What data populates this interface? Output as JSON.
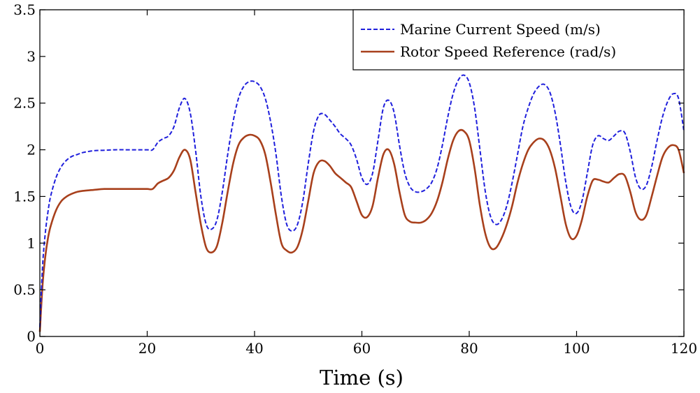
{
  "chart_data": {
    "type": "line",
    "title": "",
    "xlabel": "Time (s)",
    "ylabel": "",
    "xlim": [
      0,
      120
    ],
    "ylim": [
      0,
      3.5
    ],
    "xticks": [
      "0",
      "20",
      "40",
      "60",
      "80",
      "100",
      "120"
    ],
    "yticks": [
      "0",
      "0.5",
      "1",
      "1.5",
      "2",
      "2.5",
      "3",
      "3.5"
    ],
    "grid": false,
    "legend_position": "top-right",
    "series": [
      {
        "name": "Marine Current Speed (m/s)",
        "color": "#1f1fdc",
        "dash": "dashed",
        "x": [
          0,
          0.5,
          1,
          1.5,
          2,
          3,
          4,
          5,
          6,
          7,
          8,
          10,
          12,
          14,
          16,
          18,
          20,
          21,
          22,
          23,
          24,
          25,
          26,
          27,
          28,
          29,
          30,
          31,
          32,
          33,
          34,
          35,
          36,
          37,
          38,
          39,
          40,
          41,
          42,
          43,
          44,
          45,
          46,
          47,
          48,
          49,
          50,
          51,
          52,
          53,
          54,
          55,
          56,
          57,
          58,
          59,
          60,
          61,
          62,
          63,
          64,
          65,
          66,
          67,
          68,
          69,
          70,
          71,
          72,
          73,
          74,
          75,
          76,
          77,
          78,
          79,
          80,
          81,
          82,
          83,
          84,
          85,
          86,
          87,
          88,
          89,
          90,
          91,
          92,
          93,
          94,
          95,
          96,
          97,
          98,
          99,
          100,
          101,
          102,
          103,
          104,
          105,
          106,
          107,
          108,
          109,
          110,
          111,
          112,
          113,
          114,
          115,
          116,
          117,
          118,
          119,
          120
        ],
        "y": [
          0.1,
          0.75,
          1.1,
          1.33,
          1.5,
          1.7,
          1.82,
          1.89,
          1.93,
          1.95,
          1.97,
          1.99,
          1.995,
          2.0,
          2.0,
          2.0,
          2.0,
          2.0,
          2.08,
          2.12,
          2.15,
          2.25,
          2.45,
          2.55,
          2.4,
          2.0,
          1.5,
          1.2,
          1.15,
          1.25,
          1.55,
          1.95,
          2.3,
          2.55,
          2.68,
          2.73,
          2.73,
          2.68,
          2.55,
          2.3,
          1.95,
          1.5,
          1.2,
          1.13,
          1.2,
          1.45,
          1.85,
          2.2,
          2.37,
          2.38,
          2.32,
          2.25,
          2.17,
          2.12,
          2.05,
          1.9,
          1.7,
          1.63,
          1.75,
          2.1,
          2.45,
          2.53,
          2.4,
          2.05,
          1.75,
          1.6,
          1.55,
          1.55,
          1.58,
          1.65,
          1.8,
          2.05,
          2.35,
          2.6,
          2.75,
          2.8,
          2.72,
          2.45,
          2.0,
          1.55,
          1.28,
          1.2,
          1.25,
          1.4,
          1.65,
          1.95,
          2.25,
          2.45,
          2.6,
          2.68,
          2.7,
          2.62,
          2.4,
          2.05,
          1.65,
          1.38,
          1.32,
          1.45,
          1.75,
          2.05,
          2.15,
          2.12,
          2.1,
          2.15,
          2.2,
          2.18,
          1.98,
          1.7,
          1.58,
          1.62,
          1.82,
          2.1,
          2.35,
          2.52,
          2.6,
          2.55,
          2.2
        ]
      },
      {
        "name": "Rotor Speed Reference (rad/s)",
        "color": "#a8401c",
        "dash": "solid",
        "x": [
          0,
          0.5,
          1,
          1.5,
          2,
          3,
          4,
          5,
          6,
          7,
          8,
          10,
          12,
          14,
          16,
          18,
          20,
          21,
          22,
          23,
          24,
          25,
          26,
          27,
          28,
          29,
          30,
          31,
          32,
          33,
          34,
          35,
          36,
          37,
          38,
          39,
          40,
          41,
          42,
          43,
          44,
          45,
          46,
          47,
          48,
          49,
          50,
          51,
          52,
          53,
          54,
          55,
          56,
          57,
          58,
          59,
          60,
          61,
          62,
          63,
          64,
          65,
          66,
          67,
          68,
          69,
          70,
          71,
          72,
          73,
          74,
          75,
          76,
          77,
          78,
          79,
          80,
          81,
          82,
          83,
          84,
          85,
          86,
          87,
          88,
          89,
          90,
          91,
          92,
          93,
          94,
          95,
          96,
          97,
          98,
          99,
          100,
          101,
          102,
          103,
          104,
          105,
          106,
          107,
          108,
          109,
          110,
          111,
          112,
          113,
          114,
          115,
          116,
          117,
          118,
          119,
          120
        ],
        "y": [
          0.05,
          0.55,
          0.85,
          1.05,
          1.18,
          1.35,
          1.45,
          1.5,
          1.53,
          1.55,
          1.56,
          1.57,
          1.58,
          1.58,
          1.58,
          1.58,
          1.58,
          1.58,
          1.64,
          1.67,
          1.7,
          1.78,
          1.92,
          2.0,
          1.9,
          1.55,
          1.2,
          0.95,
          0.9,
          0.97,
          1.22,
          1.55,
          1.85,
          2.05,
          2.13,
          2.16,
          2.15,
          2.1,
          1.95,
          1.65,
          1.3,
          1.0,
          0.92,
          0.9,
          0.96,
          1.15,
          1.45,
          1.75,
          1.87,
          1.88,
          1.83,
          1.75,
          1.7,
          1.65,
          1.6,
          1.45,
          1.3,
          1.28,
          1.4,
          1.7,
          1.95,
          2.0,
          1.85,
          1.55,
          1.3,
          1.23,
          1.22,
          1.22,
          1.25,
          1.32,
          1.45,
          1.65,
          1.9,
          2.1,
          2.2,
          2.2,
          2.1,
          1.8,
          1.4,
          1.1,
          0.95,
          0.95,
          1.05,
          1.2,
          1.4,
          1.65,
          1.85,
          2.0,
          2.08,
          2.12,
          2.1,
          2.0,
          1.8,
          1.5,
          1.2,
          1.05,
          1.08,
          1.25,
          1.5,
          1.67,
          1.68,
          1.66,
          1.65,
          1.7,
          1.74,
          1.72,
          1.55,
          1.33,
          1.25,
          1.3,
          1.5,
          1.72,
          1.92,
          2.02,
          2.05,
          2.0,
          1.75
        ]
      }
    ]
  }
}
